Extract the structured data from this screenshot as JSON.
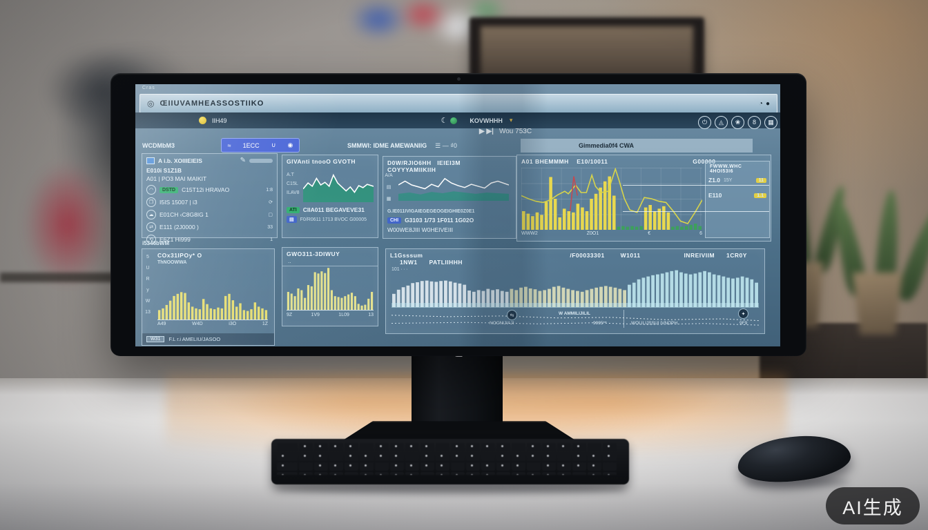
{
  "watermark": "AI生成",
  "monitor": {
    "logo": "Œ"
  },
  "screen": {
    "corner_label": "Cras",
    "titlebar": {
      "title": "ŒIIUVAMHEASSOSTIIKO",
      "win_icon": "◎",
      "right_icons": [
        "◔",
        "●"
      ]
    },
    "toolbar": {
      "status_label": "IIH49",
      "moon_icon": "☾",
      "mode_label": "KOVWHHH",
      "caret": "▾"
    },
    "icon_cluster": [
      "⏻",
      "◬",
      "❀",
      "8",
      "▦"
    ],
    "nav": {
      "play": "▶ ▶|",
      "label": "Wou 753C"
    },
    "filterbar": {
      "left_label": "WCDMbM3",
      "segment_glyphs": [
        "≈",
        "1ΕCC",
        "∪",
        "◉"
      ],
      "mid_label": "SMMWI: IDME AMEWANIIG",
      "mid_icons": "☰ — ₫0",
      "tab_label": "Gimmedia0f4   CWA"
    },
    "panelA": {
      "header": "A i.b. XOIIIEIEIS",
      "pen_icon": "✎",
      "sub1": "E010i S1Z1B",
      "sub2": "A01 | PO3 MAI MAIKIT",
      "rows": [
        {
          "icon": "◠",
          "badge": "DSTD",
          "label": "C15T12i HRAVAO",
          "value": "1:8"
        },
        {
          "icon": "❐",
          "badge": "",
          "label": "I5IS 15007 | i3",
          "value": "⟳"
        },
        {
          "icon": "☁",
          "badge": "",
          "label": "E01CH ‹C8G8IG 1",
          "value": "▢"
        },
        {
          "icon": "⇄",
          "badge": "",
          "label": "E111 (2J0000 )",
          "value": "33"
        },
        {
          "icon": "⟲",
          "badge": "",
          "label": "E6Z1 Hi999",
          "value": "1"
        }
      ]
    },
    "panelB": {
      "title": "GIVAnti tnooO  GVOTH",
      "axis": [
        "A.T",
        "C15L",
        "ILAV8"
      ],
      "badge": "ATI",
      "line1": "CIIA011 BEGAVEVE31",
      "chip": "▤",
      "line2": "F0/R0611 1713 BVOC G00005"
    },
    "panelC": {
      "title_left": "D0W/RJIO6HH",
      "title_mid": "IEIEI3M",
      "title_right": "COYYYAMIIKIIH",
      "rail": [
        "A/A",
        "▤",
        "▦"
      ],
      "row1": "G.IE011IVIGAIEGEGEOGEIGHIE0Z0E1",
      "badge": "CHI",
      "row2": "G3103 1/73 1F011 1G02O",
      "row3": "W00WE8JIII  W0HEIVEIII"
    },
    "panelD": {
      "title_left": "A01 BHEMMMH",
      "title_mid": "E10/10011",
      "title_right": "G00000",
      "xlabels": [
        "WWW2",
        "Z0O1",
        "€",
        "6"
      ],
      "side_title": "FWWW.WHC 4HOI53I6",
      "side_rows": [
        {
          "value": "Z1.0",
          "sub": "15Y",
          "badge": "11"
        },
        {
          "value": "E110",
          "sub": "",
          "badge": "1.1"
        }
      ]
    },
    "section2_label": "i5346bWM",
    "panelE": {
      "rail": [
        "5",
        "U",
        "R",
        "y",
        "W",
        "13"
      ],
      "header": "COx31IPOy* O",
      "sub": "ThNOOWWA",
      "xlabels": [
        "A49",
        "W4D",
        "i3O",
        "1Z"
      ],
      "footer_chip": "W31",
      "footer_text": "F.L  r.i  AMELIU/JASOO"
    },
    "panelF": {
      "title": "GWO311-3DIWUY",
      "dash": "‥",
      "xlabels": [
        "9Z",
        "1V9",
        "1L09",
        "13"
      ]
    },
    "panelG": {
      "header_left": "L1Gsssum",
      "header_axis": "101 ∙ ∙ ∙",
      "header_mid": "/F00033301",
      "header_mid2": "W1011",
      "header_r1": "INREIVIIM",
      "header_r2": "1CR0Y",
      "header_r3": "1NW1",
      "header_r4": "PATLIIHHH",
      "ann1": "W AMMILIJILIL",
      "ann2": "NOCNIJIAJI",
      "ann3": "9995**",
      "ann4": "WOLILIJSSUI IVNOPH",
      "ann5": "9F9",
      "circ1": "⇆",
      "circ2": "✦"
    }
  },
  "charts": {
    "panelB": {
      "layers": [
        {
          "type": "area",
          "color": "#2a9478",
          "opacity": 0.85,
          "points": [
            [
              0,
              40
            ],
            [
              7,
              58
            ],
            [
              13,
              48
            ],
            [
              19,
              72
            ],
            [
              25,
              52
            ],
            [
              31,
              60
            ],
            [
              37,
              48
            ],
            [
              43,
              82
            ],
            [
              49,
              58
            ],
            [
              55,
              46
            ],
            [
              61,
              34
            ],
            [
              67,
              46
            ],
            [
              73,
              30
            ],
            [
              79,
              50
            ],
            [
              85,
              44
            ],
            [
              91,
              54
            ],
            [
              100,
              48
            ]
          ]
        },
        {
          "type": "line",
          "color": "#ffffff",
          "width": 1.6,
          "points": [
            [
              0,
              40
            ],
            [
              7,
              58
            ],
            [
              13,
              48
            ],
            [
              19,
              72
            ],
            [
              25,
              52
            ],
            [
              31,
              60
            ],
            [
              37,
              48
            ],
            [
              43,
              82
            ],
            [
              49,
              58
            ],
            [
              55,
              46
            ],
            [
              61,
              34
            ],
            [
              67,
              46
            ],
            [
              73,
              30
            ],
            [
              79,
              50
            ],
            [
              85,
              44
            ],
            [
              91,
              54
            ],
            [
              100,
              48
            ]
          ]
        }
      ]
    },
    "panelC": {
      "layers": [
        {
          "type": "area",
          "color": "#2e8f80",
          "opacity": 0.8,
          "points": [
            [
              0,
              22
            ],
            [
              10,
              26
            ],
            [
              20,
              20
            ],
            [
              30,
              28
            ],
            [
              40,
              24
            ],
            [
              50,
              30
            ],
            [
              60,
              26
            ],
            [
              70,
              22
            ],
            [
              80,
              26
            ],
            [
              90,
              24
            ],
            [
              100,
              22
            ]
          ]
        },
        {
          "type": "line",
          "color": "#ffffff",
          "width": 1.5,
          "points": [
            [
              0,
              50
            ],
            [
              6,
              62
            ],
            [
              12,
              50
            ],
            [
              18,
              44
            ],
            [
              24,
              38
            ],
            [
              30,
              52
            ],
            [
              36,
              44
            ],
            [
              42,
              70
            ],
            [
              48,
              56
            ],
            [
              54,
              48
            ],
            [
              60,
              42
            ],
            [
              66,
              52
            ],
            [
              72,
              46
            ],
            [
              78,
              40
            ],
            [
              84,
              56
            ],
            [
              90,
              62
            ],
            [
              100,
              50
            ]
          ]
        }
      ]
    },
    "panelD": {
      "layers": [
        {
          "type": "bars",
          "color": "#e8d84f",
          "lowColor": "#3da05c",
          "lowMax": 10,
          "gap": 0.3,
          "values": [
            30,
            26,
            22,
            28,
            24,
            45,
            85,
            50,
            20,
            34,
            30,
            28,
            42,
            36,
            30,
            50,
            58,
            68,
            78,
            86,
            55,
            5,
            6,
            5,
            6,
            5,
            6,
            36,
            40,
            30,
            34,
            38,
            28,
            5,
            6,
            5,
            6,
            8,
            10,
            6
          ]
        },
        {
          "type": "line",
          "color": "#d8d44a",
          "width": 1.6,
          "points": [
            [
              0,
              55
            ],
            [
              4,
              50
            ],
            [
              8,
              46
            ],
            [
              12,
              44
            ],
            [
              16,
              48
            ],
            [
              20,
              56
            ],
            [
              24,
              62
            ],
            [
              26,
              58
            ],
            [
              30,
              72
            ],
            [
              33,
              60
            ],
            [
              36,
              60
            ],
            [
              39,
              88
            ],
            [
              41,
              70
            ],
            [
              44,
              60
            ],
            [
              48,
              62
            ],
            [
              52,
              98
            ],
            [
              54,
              80
            ],
            [
              57,
              50
            ],
            [
              60,
              32
            ],
            [
              64,
              28
            ],
            [
              68,
              52
            ],
            [
              72,
              50
            ],
            [
              76,
              46
            ],
            [
              80,
              44
            ],
            [
              84,
              30
            ],
            [
              88,
              14
            ],
            [
              92,
              10
            ],
            [
              96,
              28
            ],
            [
              100,
              48
            ]
          ]
        },
        {
          "type": "line",
          "color": "#c24a52",
          "width": 1.6,
          "points": [
            [
              27,
              30
            ],
            [
              29,
              86
            ],
            [
              31,
              55
            ]
          ]
        }
      ]
    },
    "panelE": {
      "layers": [
        {
          "type": "bars",
          "color": "#e9dd66",
          "gap": 0.35,
          "values": [
            22,
            26,
            34,
            44,
            55,
            60,
            64,
            62,
            40,
            30,
            26,
            24,
            48,
            36,
            26,
            24,
            28,
            26,
            55,
            60,
            45,
            30,
            38,
            22,
            20,
            24,
            40,
            30,
            26,
            22
          ]
        }
      ]
    },
    "panelF": {
      "layers": [
        {
          "type": "bars",
          "color": "#e6e188",
          "gap": 0.35,
          "values": [
            42,
            38,
            32,
            50,
            46,
            28,
            58,
            55,
            88,
            85,
            90,
            86,
            98,
            46,
            32,
            30,
            28,
            32,
            36,
            40,
            32,
            14,
            10,
            12,
            26,
            42
          ]
        }
      ]
    },
    "panelG": {
      "layers": [
        {
          "type": "bars",
          "color": "#edf5f8",
          "opacity": 0.85,
          "gap": 0.3,
          "zones": [
            {
              "from": 0,
              "color": "#edf5f8"
            },
            {
              "from": 25,
              "color": "#e8e7bd"
            },
            {
              "from": 50,
              "color": "#c5edf4"
            }
          ],
          "values": [
            32,
            42,
            48,
            52,
            58,
            60,
            63,
            64,
            62,
            61,
            63,
            64,
            62,
            59,
            57,
            54,
            40,
            37,
            41,
            39,
            44,
            41,
            43,
            39,
            37,
            44,
            41,
            47,
            49,
            45,
            43,
            39,
            41,
            44,
            49,
            51,
            47,
            44,
            41,
            39,
            37,
            41,
            44,
            47,
            49,
            51,
            49,
            47,
            44,
            41,
            54,
            59,
            67,
            71,
            74,
            77,
            79,
            81,
            84,
            87,
            89,
            84,
            81,
            79,
            81,
            84,
            87,
            84,
            79,
            77,
            74,
            71,
            69,
            71,
            74,
            71,
            67,
            59
          ]
        }
      ]
    },
    "panelG_ann": {
      "layers": [
        {
          "type": "line",
          "color": "#dce9f0",
          "width": 1,
          "dash": "2,3",
          "points": [
            [
              0,
              70
            ],
            [
              15,
              62
            ],
            [
              30,
              66
            ],
            [
              45,
              55
            ],
            [
              60,
              58
            ],
            [
              75,
              45
            ],
            [
              90,
              50
            ],
            [
              100,
              40
            ]
          ]
        },
        {
          "type": "line",
          "color": "#cfe0ea",
          "width": 1,
          "dash": "2,3",
          "points": [
            [
              0,
              25
            ],
            [
              20,
              30
            ],
            [
              40,
              22
            ],
            [
              55,
              28
            ],
            [
              70,
              18
            ],
            [
              85,
              24
            ],
            [
              100,
              15
            ]
          ]
        }
      ]
    }
  }
}
